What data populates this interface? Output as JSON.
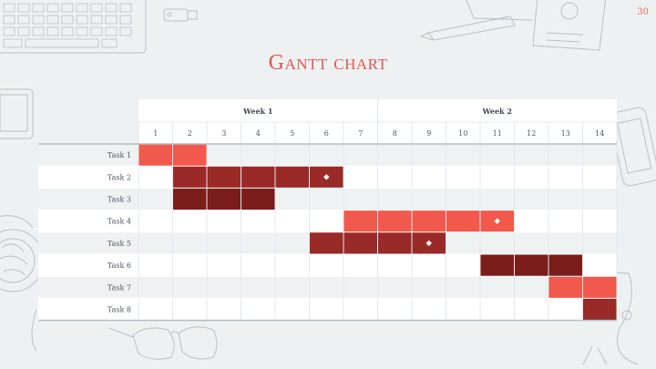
{
  "page": {
    "number": "30",
    "title": "Gantt chart"
  },
  "chart_data": {
    "type": "gantt",
    "weeks": [
      {
        "label": "Week 1",
        "days": [
          1,
          7
        ]
      },
      {
        "label": "Week 2",
        "days": [
          8,
          14
        ]
      }
    ],
    "days": [
      "1",
      "2",
      "3",
      "4",
      "5",
      "6",
      "7",
      "8",
      "9",
      "10",
      "11",
      "12",
      "13",
      "14"
    ],
    "tasks": [
      {
        "label": "Task 1",
        "start": 1,
        "end": 2,
        "color": "#f0594b",
        "milestone": null
      },
      {
        "label": "Task 2",
        "start": 2,
        "end": 6,
        "color": "#9a2a27",
        "milestone": 6
      },
      {
        "label": "Task 3",
        "start": 2,
        "end": 4,
        "color": "#7a1d1b",
        "milestone": null
      },
      {
        "label": "Task 4",
        "start": 7,
        "end": 11,
        "color": "#f0594b",
        "milestone": 11
      },
      {
        "label": "Task 5",
        "start": 6,
        "end": 9,
        "color": "#9a2a27",
        "milestone": 9
      },
      {
        "label": "Task 6",
        "start": 11,
        "end": 13,
        "color": "#7a1d1b",
        "milestone": null
      },
      {
        "label": "Task 7",
        "start": 13,
        "end": 14,
        "color": "#f0594b",
        "milestone": null
      },
      {
        "label": "Task 8",
        "start": 14,
        "end": 14,
        "color": "#9a2a27",
        "milestone": null
      }
    ]
  }
}
